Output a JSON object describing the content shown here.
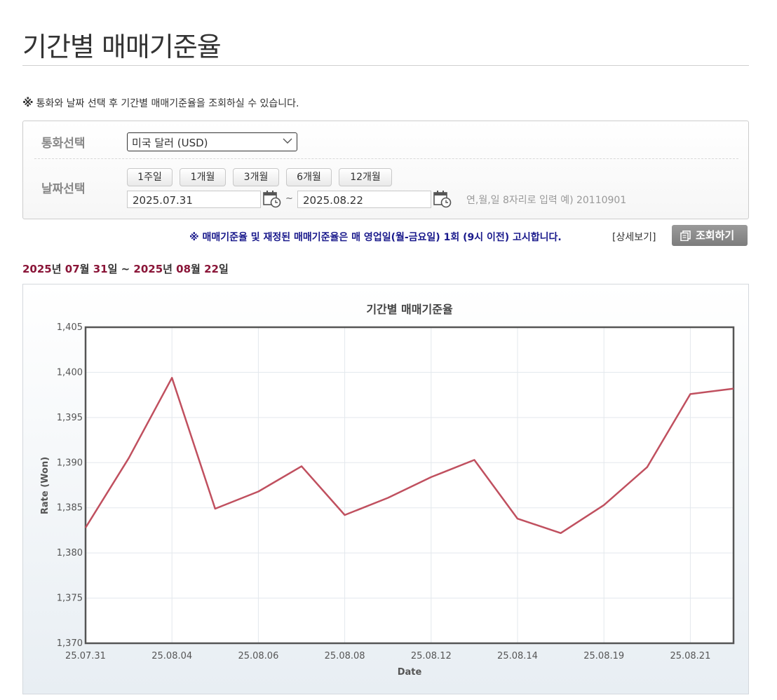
{
  "page": {
    "title": "기간별 매매기준율",
    "notice_mark": "※",
    "notice": "통화와 날짜 선택 후 기간별 매매기준율을 조회하실 수 있습니다."
  },
  "filters": {
    "currency_label": "통화선택",
    "currency_value": "미국 달러 (USD)",
    "date_label": "날짜선택",
    "period_buttons": [
      "1주일",
      "1개월",
      "3개월",
      "6개월",
      "12개월"
    ],
    "start_date": "2025.07.31",
    "tilde": "~",
    "end_date": "2025.08.22",
    "date_hint": "연,월,일 8자리로 입력 예) 20110901"
  },
  "actions": {
    "notice": "※ 매매기준율 및 재정된 매매기준율은 매 영업일(월-금요일) 1회 (9시 이전) 고시합니다.",
    "detail_link": "[상세보기]",
    "search_button": "조회하기"
  },
  "range": {
    "y1": "2025",
    "u_year1": "년 ",
    "m1": "07",
    "u_month1": "월 ",
    "d1": "31",
    "u_day1": "일 ~ ",
    "y2": "2025",
    "u_year2": "년 ",
    "m2": "08",
    "u_month2": "월 ",
    "d2": "22",
    "u_day2": "일"
  },
  "icons": {
    "calendar": "calendar-clock-icon",
    "search": "document-icon",
    "dropdown": "chevron-down-icon"
  },
  "colors": {
    "line": "#c0505f",
    "range_number": "#8a1538",
    "notice_blue": "#1a1a8c"
  },
  "chart_data": {
    "type": "line",
    "title": "기간별 매매기준율",
    "xlabel": "Date",
    "ylabel": "Rate (Won)",
    "ylim": [
      1370,
      1405
    ],
    "y_ticks": [
      "1,370",
      "1,375",
      "1,380",
      "1,385",
      "1,390",
      "1,395",
      "1,400",
      "1,405"
    ],
    "x_tick_labels": [
      "25.07.31",
      "25.08.04",
      "25.08.06",
      "25.08.08",
      "25.08.12",
      "25.08.14",
      "25.08.19",
      "25.08.21"
    ],
    "grid": true,
    "series": [
      {
        "dates": [
          "25.07.31",
          "25.08.01",
          "25.08.04",
          "25.08.05",
          "25.08.06",
          "25.08.07",
          "25.08.08",
          "25.08.11",
          "25.08.12",
          "25.08.13",
          "25.08.14",
          "25.08.18",
          "25.08.19",
          "25.08.20",
          "25.08.21",
          "25.08.22"
        ],
        "values": [
          1382.8,
          1390.5,
          1399.4,
          1384.9,
          1386.8,
          1389.6,
          1384.2,
          1386.1,
          1388.4,
          1390.3,
          1383.8,
          1382.2,
          1385.3,
          1389.5,
          1397.6,
          1398.2
        ]
      }
    ]
  }
}
